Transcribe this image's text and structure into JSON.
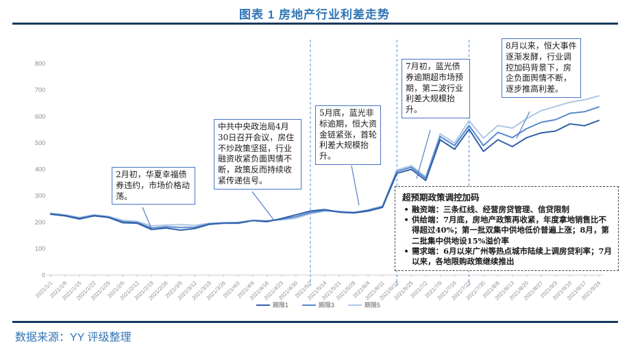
{
  "page": {
    "title": "图表 1 房地产行业利差走势",
    "source": "数据来源：YY 评级整理"
  },
  "colors": {
    "title_blue": "#2E74B5",
    "rule_navy": "#17375E",
    "axis_text": "#8c8c8c",
    "axis_line": "#c9c9c9",
    "vline_dashed": "#6FA0DC",
    "callout_border": "#4472C4"
  },
  "chart_data": {
    "type": "line",
    "title": "图表 1 房地产行业利差走势",
    "xlabel": "",
    "ylabel": "",
    "ylim": [
      0,
      800
    ],
    "yticks": [
      0,
      100,
      200,
      300,
      400,
      500,
      600,
      700,
      800
    ],
    "grid": false,
    "legend_position": "bottom",
    "x": [
      "2021/1/1",
      "2021/1/8",
      "2021/1/15",
      "2021/1/22",
      "2021/1/29",
      "2021/2/5",
      "2021/2/12",
      "2021/2/19",
      "2021/2/26",
      "2021/3/5",
      "2021/3/12",
      "2021/3/19",
      "2021/3/26",
      "2021/4/2",
      "2021/4/9",
      "2021/4/16",
      "2021/4/23",
      "2021/4/30",
      "2021/5/7",
      "2021/5/14",
      "2021/5/21",
      "2021/5/28",
      "2021/6/4",
      "2021/6/11",
      "2021/6/18",
      "2021/6/25",
      "2021/7/2",
      "2021/7/9",
      "2021/7/16",
      "2021/7/23",
      "2021/7/30",
      "2021/8/6",
      "2021/8/13",
      "2021/8/20",
      "2021/8/27",
      "2021/9/3",
      "2021/9/10",
      "2021/9/17",
      "2021/9/24"
    ],
    "vlines": [
      "2021/5/7",
      "2021/6/18",
      "2021/7/23"
    ],
    "series": [
      {
        "name": "期限1",
        "color": "#2E5FA8",
        "values": [
          230,
          224,
          212,
          224,
          218,
          198,
          196,
          172,
          178,
          170,
          176,
          192,
          196,
          196,
          206,
          202,
          214,
          228,
          242,
          248,
          238,
          235,
          242,
          256,
          385,
          400,
          358,
          512,
          476,
          552,
          468,
          512,
          486,
          520,
          538,
          545,
          572,
          565,
          585
        ]
      },
      {
        "name": "期限3",
        "color": "#5588CC",
        "values": [
          232,
          226,
          215,
          226,
          220,
          202,
          199,
          178,
          183,
          180,
          181,
          194,
          197,
          198,
          206,
          204,
          211,
          221,
          236,
          245,
          240,
          237,
          245,
          259,
          392,
          408,
          366,
          524,
          490,
          566,
          490,
          540,
          520,
          554,
          578,
          588,
          612,
          618,
          636
        ]
      },
      {
        "name": "期限5",
        "color": "#AEC6E8",
        "values": [
          234,
          228,
          218,
          228,
          222,
          207,
          203,
          186,
          189,
          191,
          188,
          196,
          198,
          200,
          207,
          206,
          209,
          215,
          232,
          242,
          239,
          236,
          247,
          261,
          398,
          414,
          372,
          534,
          500,
          584,
          518,
          566,
          556,
          592,
          622,
          638,
          654,
          663,
          678
        ]
      }
    ]
  },
  "annotations": {
    "callouts": [
      {
        "text": "2月初，华夏幸福债券违约，市场价格动荡。"
      },
      {
        "text": "中共中央政治局4月30日召开会议，房住不炒政策坚挺，行业融资收紧负面舆情不断，政策反而持续收紧传递信号。"
      },
      {
        "text": "5月底，蓝光非标逾期，恒大资金链紧张，首轮利差大规模抬升。"
      },
      {
        "text": "7月初，蓝光债券逾期超市场预期，第二波行业利差大规模抬升。"
      },
      {
        "text": "8月以来，恒大事件逐渐发酵，行业调控加码背景下，房企负面舆情不断，逐步推高利差。"
      }
    ],
    "policy_box": {
      "title": "超预期政策调控加码",
      "bullets": [
        {
          "lead": "融资端：",
          "text": "三条红线、经营房贷管理、信贷限制"
        },
        {
          "lead": "供给端：",
          "text": "7月底，房地产政策再收紧，年度拿地销售比不得超过40%；第一批双集中供地低价普遍上涨；8月，第二批集中供地设15%溢价率"
        },
        {
          "lead": "需求端：",
          "text": "6月以来广州等热点城市陆续上调房贷利率；7月以来，各地限购政策继续推出"
        }
      ]
    }
  }
}
